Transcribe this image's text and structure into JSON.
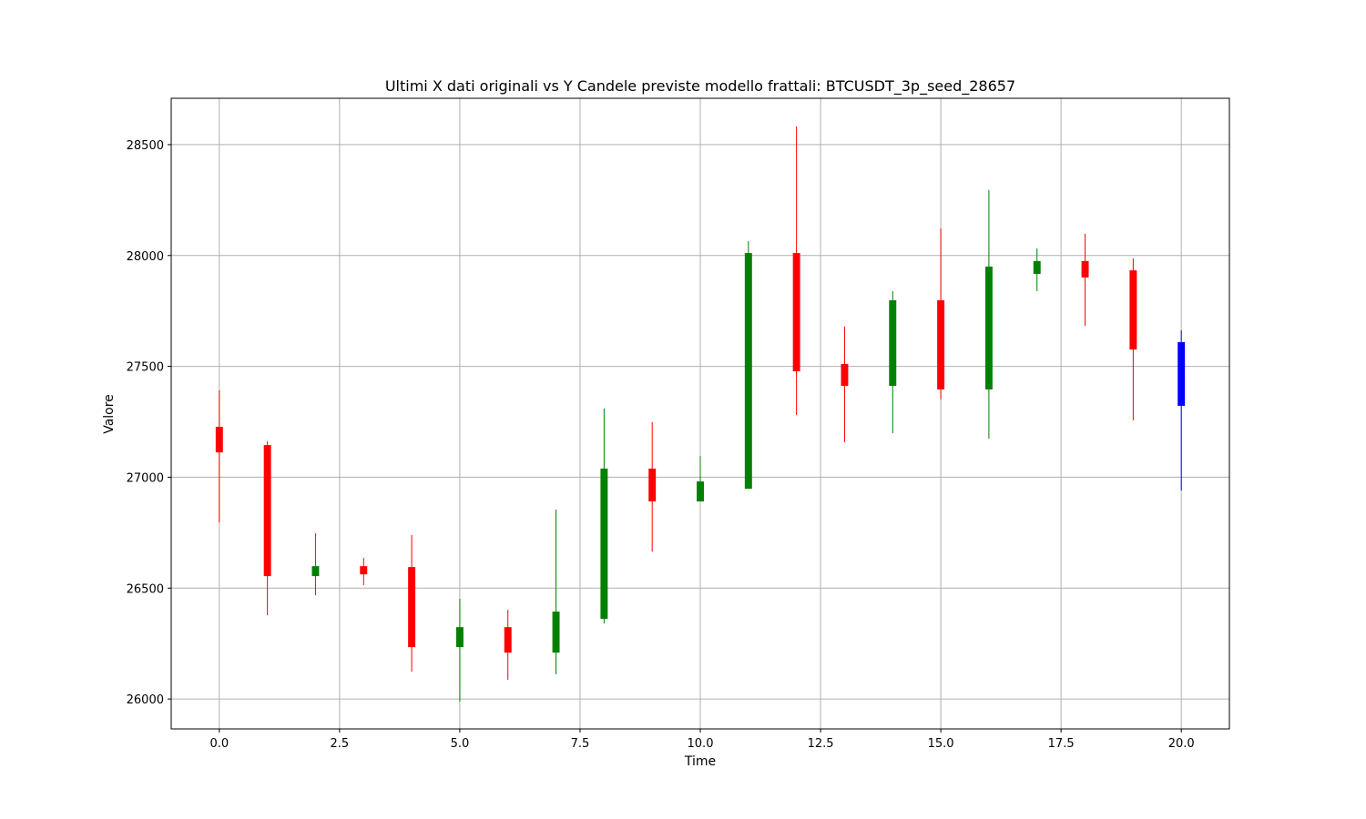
{
  "chart_data": {
    "type": "candlestick",
    "title": "Ultimi X dati originali vs Y Candele previste modello frattali: BTCUSDT_3p_seed_28657",
    "xlabel": "Time",
    "ylabel": "Valore",
    "x": [
      0,
      1,
      2,
      3,
      4,
      5,
      6,
      7,
      8,
      9,
      10,
      11,
      12,
      13,
      14,
      15,
      16,
      17,
      18,
      19,
      20
    ],
    "open": [
      27227,
      27145,
      26554,
      26599,
      26595,
      26234,
      26324,
      26209,
      26361,
      27039,
      26891,
      26948,
      28011,
      27511,
      27412,
      27798,
      27396,
      27917,
      27975,
      27933,
      27322
    ],
    "high": [
      27392,
      27162,
      26747,
      26636,
      26739,
      26452,
      26402,
      26854,
      27310,
      27248,
      27096,
      28065,
      28582,
      27679,
      27839,
      28122,
      28295,
      28032,
      28098,
      27987,
      27663
    ],
    "low": [
      26796,
      26378,
      26468,
      26513,
      26123,
      25988,
      26086,
      26111,
      26341,
      26665,
      26891,
      26948,
      27281,
      27158,
      27199,
      27351,
      27174,
      27839,
      27683,
      27256,
      26940
    ],
    "close": [
      27112,
      26554,
      26599,
      26562,
      26234,
      26324,
      26209,
      26394,
      27039,
      26891,
      26981,
      28011,
      27478,
      27412,
      27798,
      27396,
      27950,
      27975,
      27901,
      27576,
      27609
    ],
    "colors": [
      "red",
      "red",
      "green",
      "red",
      "red",
      "green",
      "red",
      "green",
      "green",
      "red",
      "green",
      "green",
      "red",
      "red",
      "green",
      "red",
      "green",
      "green",
      "red",
      "red",
      "blue"
    ],
    "xlim": [
      -1,
      21
    ],
    "ylim": [
      25865,
      28709
    ],
    "xticks": [
      {
        "value": 0,
        "label": "0.0"
      },
      2.5,
      {
        "value": 5,
        "label": "5.0"
      },
      7.5,
      {
        "value": 10,
        "label": "10.0"
      },
      12.5,
      {
        "value": 15,
        "label": "15.0"
      },
      17.5,
      {
        "value": 20,
        "label": "20.0"
      }
    ],
    "yticks": [
      26000,
      26500,
      27000,
      27500,
      28000,
      28500
    ],
    "grid": true
  }
}
